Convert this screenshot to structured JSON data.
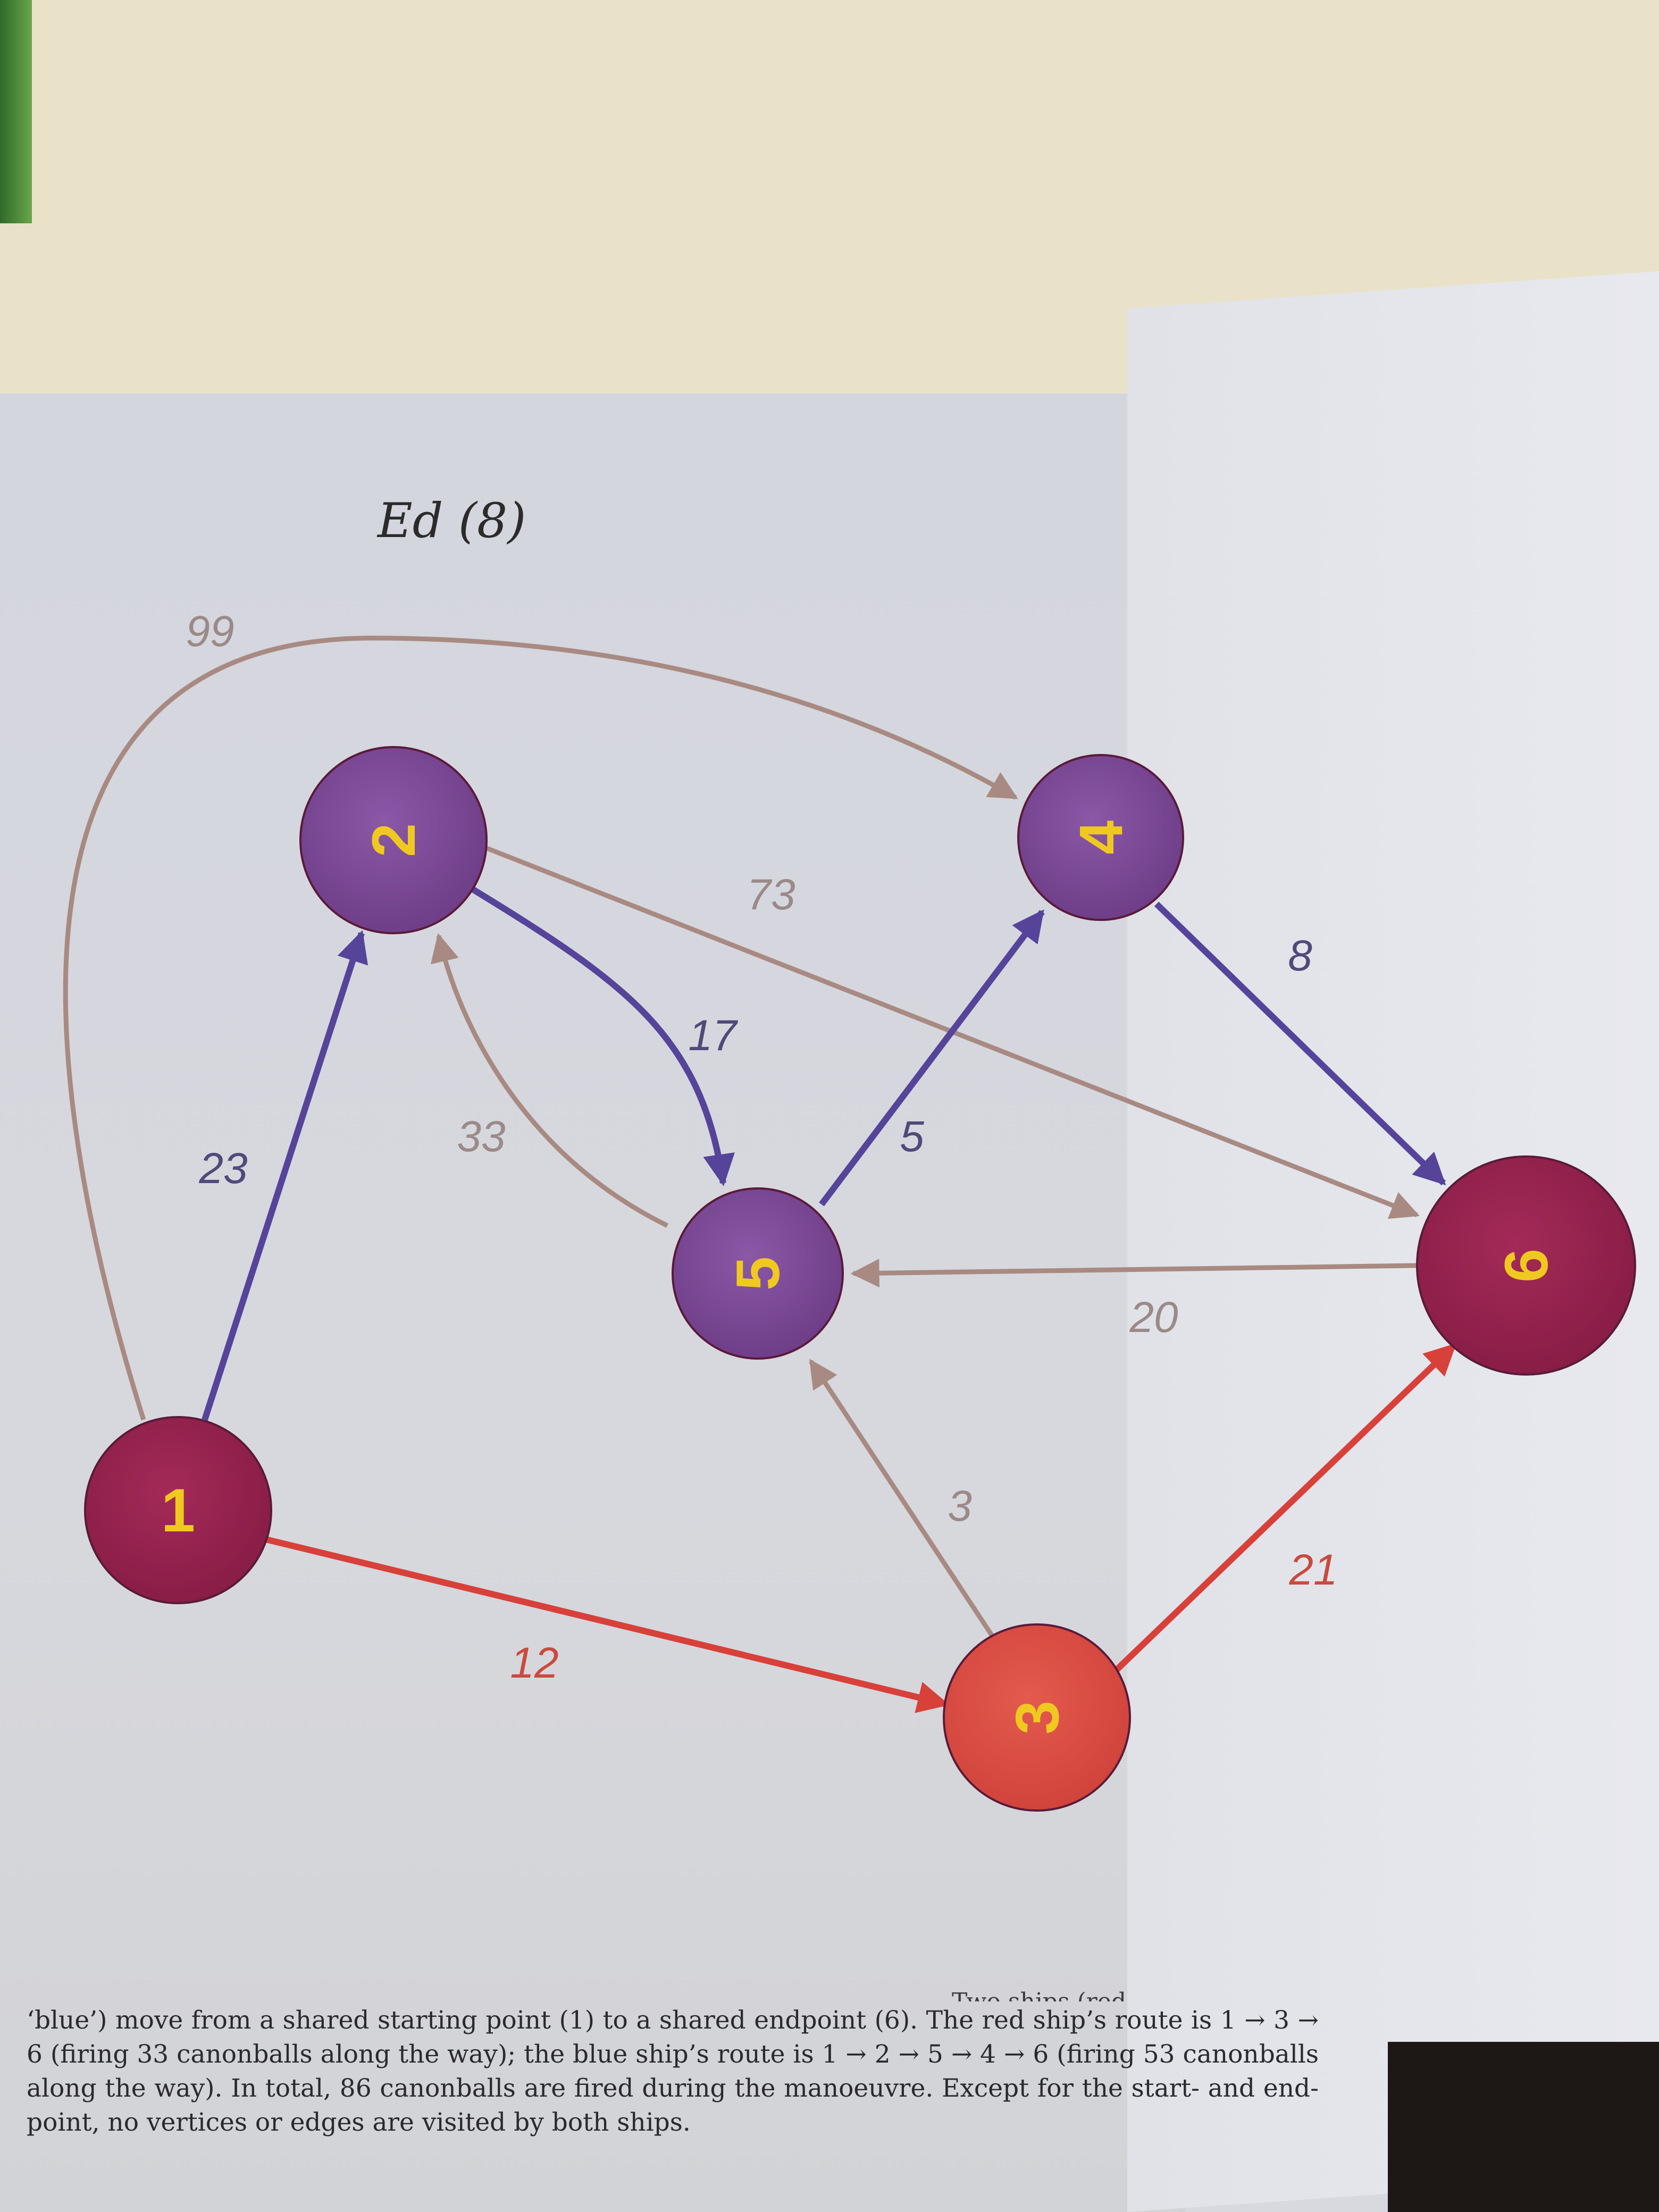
{
  "annotation": "Ed (8)",
  "colors": {
    "edge_red": "#d8403a",
    "edge_blue": "#55449a",
    "edge_grey": "#a88a82",
    "node_crimson": "#94224f",
    "node_purple": "#7c4a96",
    "node_red": "#dd5046",
    "node_label": "#f0c920"
  },
  "nodes": [
    {
      "id": "1",
      "label": "1",
      "tone": "crimson"
    },
    {
      "id": "2",
      "label": "2",
      "tone": "purple"
    },
    {
      "id": "3",
      "label": "3",
      "tone": "red"
    },
    {
      "id": "4",
      "label": "4",
      "tone": "purple"
    },
    {
      "id": "5",
      "label": "5",
      "tone": "purple"
    },
    {
      "id": "6",
      "label": "6",
      "tone": "crimson"
    }
  ],
  "edges": [
    {
      "from": "1",
      "to": "4",
      "weight": "99",
      "route": "grey"
    },
    {
      "from": "1",
      "to": "2",
      "weight": "23",
      "route": "blue"
    },
    {
      "from": "1",
      "to": "3",
      "weight": "12",
      "route": "red"
    },
    {
      "from": "2",
      "to": "6",
      "weight": "73",
      "route": "grey"
    },
    {
      "from": "2",
      "to": "5",
      "weight": "17",
      "route": "blue"
    },
    {
      "from": "5",
      "to": "2",
      "weight": "33",
      "route": "grey"
    },
    {
      "from": "5",
      "to": "4",
      "weight": "5",
      "route": "blue"
    },
    {
      "from": "4",
      "to": "6",
      "weight": "8",
      "route": "blue"
    },
    {
      "from": "6",
      "to": "5",
      "weight": "20",
      "route": "grey"
    },
    {
      "from": "3",
      "to": "5",
      "weight": "3",
      "route": "grey"
    },
    {
      "from": "3",
      "to": "6",
      "weight": "21",
      "route": "red"
    }
  ],
  "caption": {
    "cut_line": "Two ships (red",
    "text": "‘blue’) move from a shared starting point (1) to a shared endpoint (6). The red ship’s route is 1 → 3 → 6 (firing 33 canonballs along the way); the blue ship’s route is 1 → 2 → 5 → 4 → 6 (firing 53 canonballs along the way). In total, 86 canonballs are fired during the manoeuvre. Except for the start- and end-point, no vertices or edges are visited by both ships."
  }
}
